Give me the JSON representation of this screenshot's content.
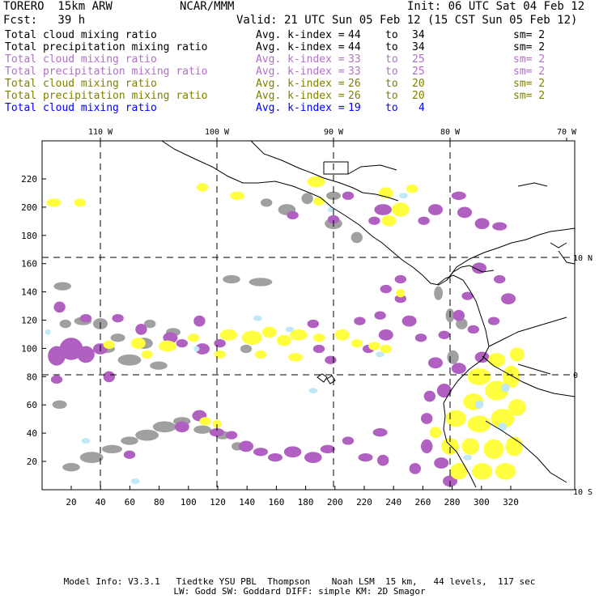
{
  "header": {
    "model": "TORERO  15km ARW",
    "org": "NCAR/MMM",
    "init": "Init: 06 UTC Sat 04 Feb 12",
    "fcst": "Fcst:   39 h",
    "valid": "Valid: 21 UTC Sun 05 Feb 12 (15 CST Sun 05 Feb 12)"
  },
  "legend": [
    {
      "field": "Total cloud mixing ratio",
      "avg": "Avg. k-index =",
      "from": "44",
      "to": "to",
      "to_val": "34",
      "sm": "sm= 2",
      "color": "#000000"
    },
    {
      "field": "Total precipitation mixing ratio",
      "avg": "Avg. k-index =",
      "from": "44",
      "to": "to",
      "to_val": "34",
      "sm": "sm= 2",
      "color": "#000000"
    },
    {
      "field": "Total cloud mixing ratio",
      "avg": "Avg. k-index =",
      "from": "33",
      "to": "to",
      "to_val": "25",
      "sm": "sm= 2",
      "color": "#b070c8"
    },
    {
      "field": "Total precipitation mixing ratio",
      "avg": "Avg. k-index =",
      "from": "33",
      "to": "to",
      "to_val": "25",
      "sm": "sm= 2",
      "color": "#b070c8"
    },
    {
      "field": "Total cloud mixing ratio",
      "avg": "Avg. k-index =",
      "from": "26",
      "to": "to",
      "to_val": "20",
      "sm": "sm= 2",
      "color": "#808000"
    },
    {
      "field": "Total precipitation mixing ratio",
      "avg": "Avg. k-index =",
      "from": "26",
      "to": "to",
      "to_val": "20",
      "sm": "sm= 2",
      "color": "#808000"
    },
    {
      "field": "Total cloud mixing ratio",
      "avg": "Avg. k-index =",
      "from": "19",
      "to": "to",
      "to_val": "4",
      "sm": "",
      "color": "#0000ff"
    }
  ],
  "map": {
    "lon_labels": [
      "110 W",
      "100 W",
      "90 W",
      "80 W",
      "70 W"
    ],
    "lat_labels": [
      "10 N",
      "0",
      "10 S"
    ],
    "x_ticks": [
      "20",
      "40",
      "60",
      "80",
      "100",
      "120",
      "140",
      "160",
      "180",
      "200",
      "220",
      "240",
      "260",
      "280",
      "300",
      "320"
    ],
    "y_ticks": [
      "20",
      "40",
      "60",
      "80",
      "100",
      "120",
      "140",
      "160",
      "180",
      "200",
      "220"
    ],
    "colors": {
      "gray": "#a0a0a0",
      "purple": "#b060c0",
      "yellow": "#ffff40",
      "lightblue": "#c0e8f8",
      "coast": "#000000"
    }
  },
  "footer": {
    "line1": "Model Info: V3.3.1   Tiedtke YSU PBL  Thompson    Noah LSM  15 km,   44 levels,  117 sec",
    "line2": "LW: Godd SW: Goddard DIFF: simple KM: 2D Smagor"
  }
}
